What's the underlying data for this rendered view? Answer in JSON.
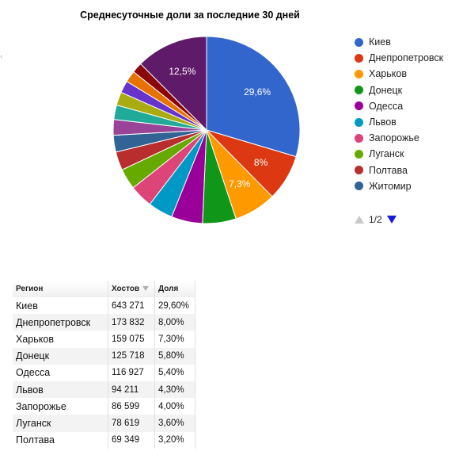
{
  "chart_data": {
    "type": "pie",
    "title": "Среднесуточные доли за последние 30 дней",
    "slices": [
      {
        "name": "Киев",
        "value": 29.6,
        "color": "#3366cc",
        "label": "29,6%"
      },
      {
        "name": "Днепропетровск",
        "value": 8.0,
        "color": "#dc3912",
        "label": "8%"
      },
      {
        "name": "Харьков",
        "value": 7.3,
        "color": "#ff9900",
        "label": "7,3%"
      },
      {
        "name": "Донецк",
        "value": 5.8,
        "color": "#109618",
        "label": ""
      },
      {
        "name": "Одесса",
        "value": 5.4,
        "color": "#990099",
        "label": ""
      },
      {
        "name": "Львов",
        "value": 4.3,
        "color": "#0099c6",
        "label": ""
      },
      {
        "name": "Запорожье",
        "value": 4.0,
        "color": "#dd4477",
        "label": ""
      },
      {
        "name": "Луганск",
        "value": 3.6,
        "color": "#66aa00",
        "label": ""
      },
      {
        "name": "Полтава",
        "value": 3.2,
        "color": "#b82e2e",
        "label": ""
      },
      {
        "name": "Житомир",
        "value": 2.9,
        "color": "#316395",
        "label": ""
      },
      {
        "name": "",
        "value": 2.7,
        "color": "#994499",
        "label": ""
      },
      {
        "name": "",
        "value": 2.5,
        "color": "#22aa99",
        "label": ""
      },
      {
        "name": "",
        "value": 2.3,
        "color": "#aaaa11",
        "label": ""
      },
      {
        "name": "",
        "value": 2.1,
        "color": "#6633cc",
        "label": ""
      },
      {
        "name": "",
        "value": 2.0,
        "color": "#e67300",
        "label": ""
      },
      {
        "name": "",
        "value": 1.8,
        "color": "#8b0707",
        "label": ""
      },
      {
        "name": "",
        "value": 12.5,
        "color": "#5f1b69",
        "label": "12,5%"
      }
    ],
    "legend": {
      "position": "right",
      "entries": [
        "Киев",
        "Днепропетровск",
        "Харьков",
        "Донецк",
        "Одесса",
        "Львов",
        "Запорожье",
        "Луганск",
        "Полтава",
        "Житомир"
      ],
      "pager": "1/2"
    }
  },
  "table": {
    "headers": [
      "Регион",
      "Хостов",
      "Доля"
    ],
    "rows": [
      [
        "Киев",
        "643 271",
        "29,60%"
      ],
      [
        "Днепропетровск",
        "173 832",
        "8,00%"
      ],
      [
        "Харьков",
        "159 075",
        "7,30%"
      ],
      [
        "Донецк",
        "125 718",
        "5,80%"
      ],
      [
        "Одесса",
        "116 927",
        "5,40%"
      ],
      [
        "Львов",
        "94 211",
        "4,30%"
      ],
      [
        "Запорожье",
        "86 599",
        "4,00%"
      ],
      [
        "Луганск",
        "78 619",
        "3,60%"
      ],
      [
        "Полтава",
        "69 349",
        "3,20%"
      ]
    ]
  },
  "edge_mark": "‹"
}
